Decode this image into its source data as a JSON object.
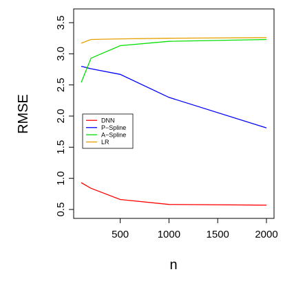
{
  "chart_data": {
    "type": "line",
    "title": "",
    "xlabel": "n",
    "ylabel": "RMSE",
    "x": [
      100,
      200,
      500,
      1000,
      2000
    ],
    "xlim": [
      100,
      2000
    ],
    "ylim": [
      0.5,
      3.5
    ],
    "x_ticks": [
      500,
      1000,
      1500,
      2000
    ],
    "x_tick_labels": [
      "500",
      "1000",
      "1500",
      "2000"
    ],
    "y_ticks": [
      0.5,
      1.0,
      1.5,
      2.0,
      2.5,
      3.0,
      3.5
    ],
    "y_tick_labels": [
      "0.5",
      "1.0",
      "1.5",
      "2.0",
      "2.5",
      "3.0",
      "3.5"
    ],
    "grid": false,
    "legend_position": "middle-left",
    "series": [
      {
        "name": "DNN",
        "color": "#ff0000",
        "values": [
          0.93,
          0.84,
          0.66,
          0.58,
          0.57
        ]
      },
      {
        "name": "P−Spline",
        "color": "#0000ff",
        "values": [
          2.8,
          2.76,
          2.67,
          2.3,
          1.81
        ]
      },
      {
        "name": "A−Spline",
        "color": "#00e000",
        "values": [
          2.54,
          2.93,
          3.13,
          3.2,
          3.23
        ]
      },
      {
        "name": "LR",
        "color": "#e69f00",
        "values": [
          3.17,
          3.23,
          3.24,
          3.25,
          3.26
        ]
      }
    ]
  }
}
